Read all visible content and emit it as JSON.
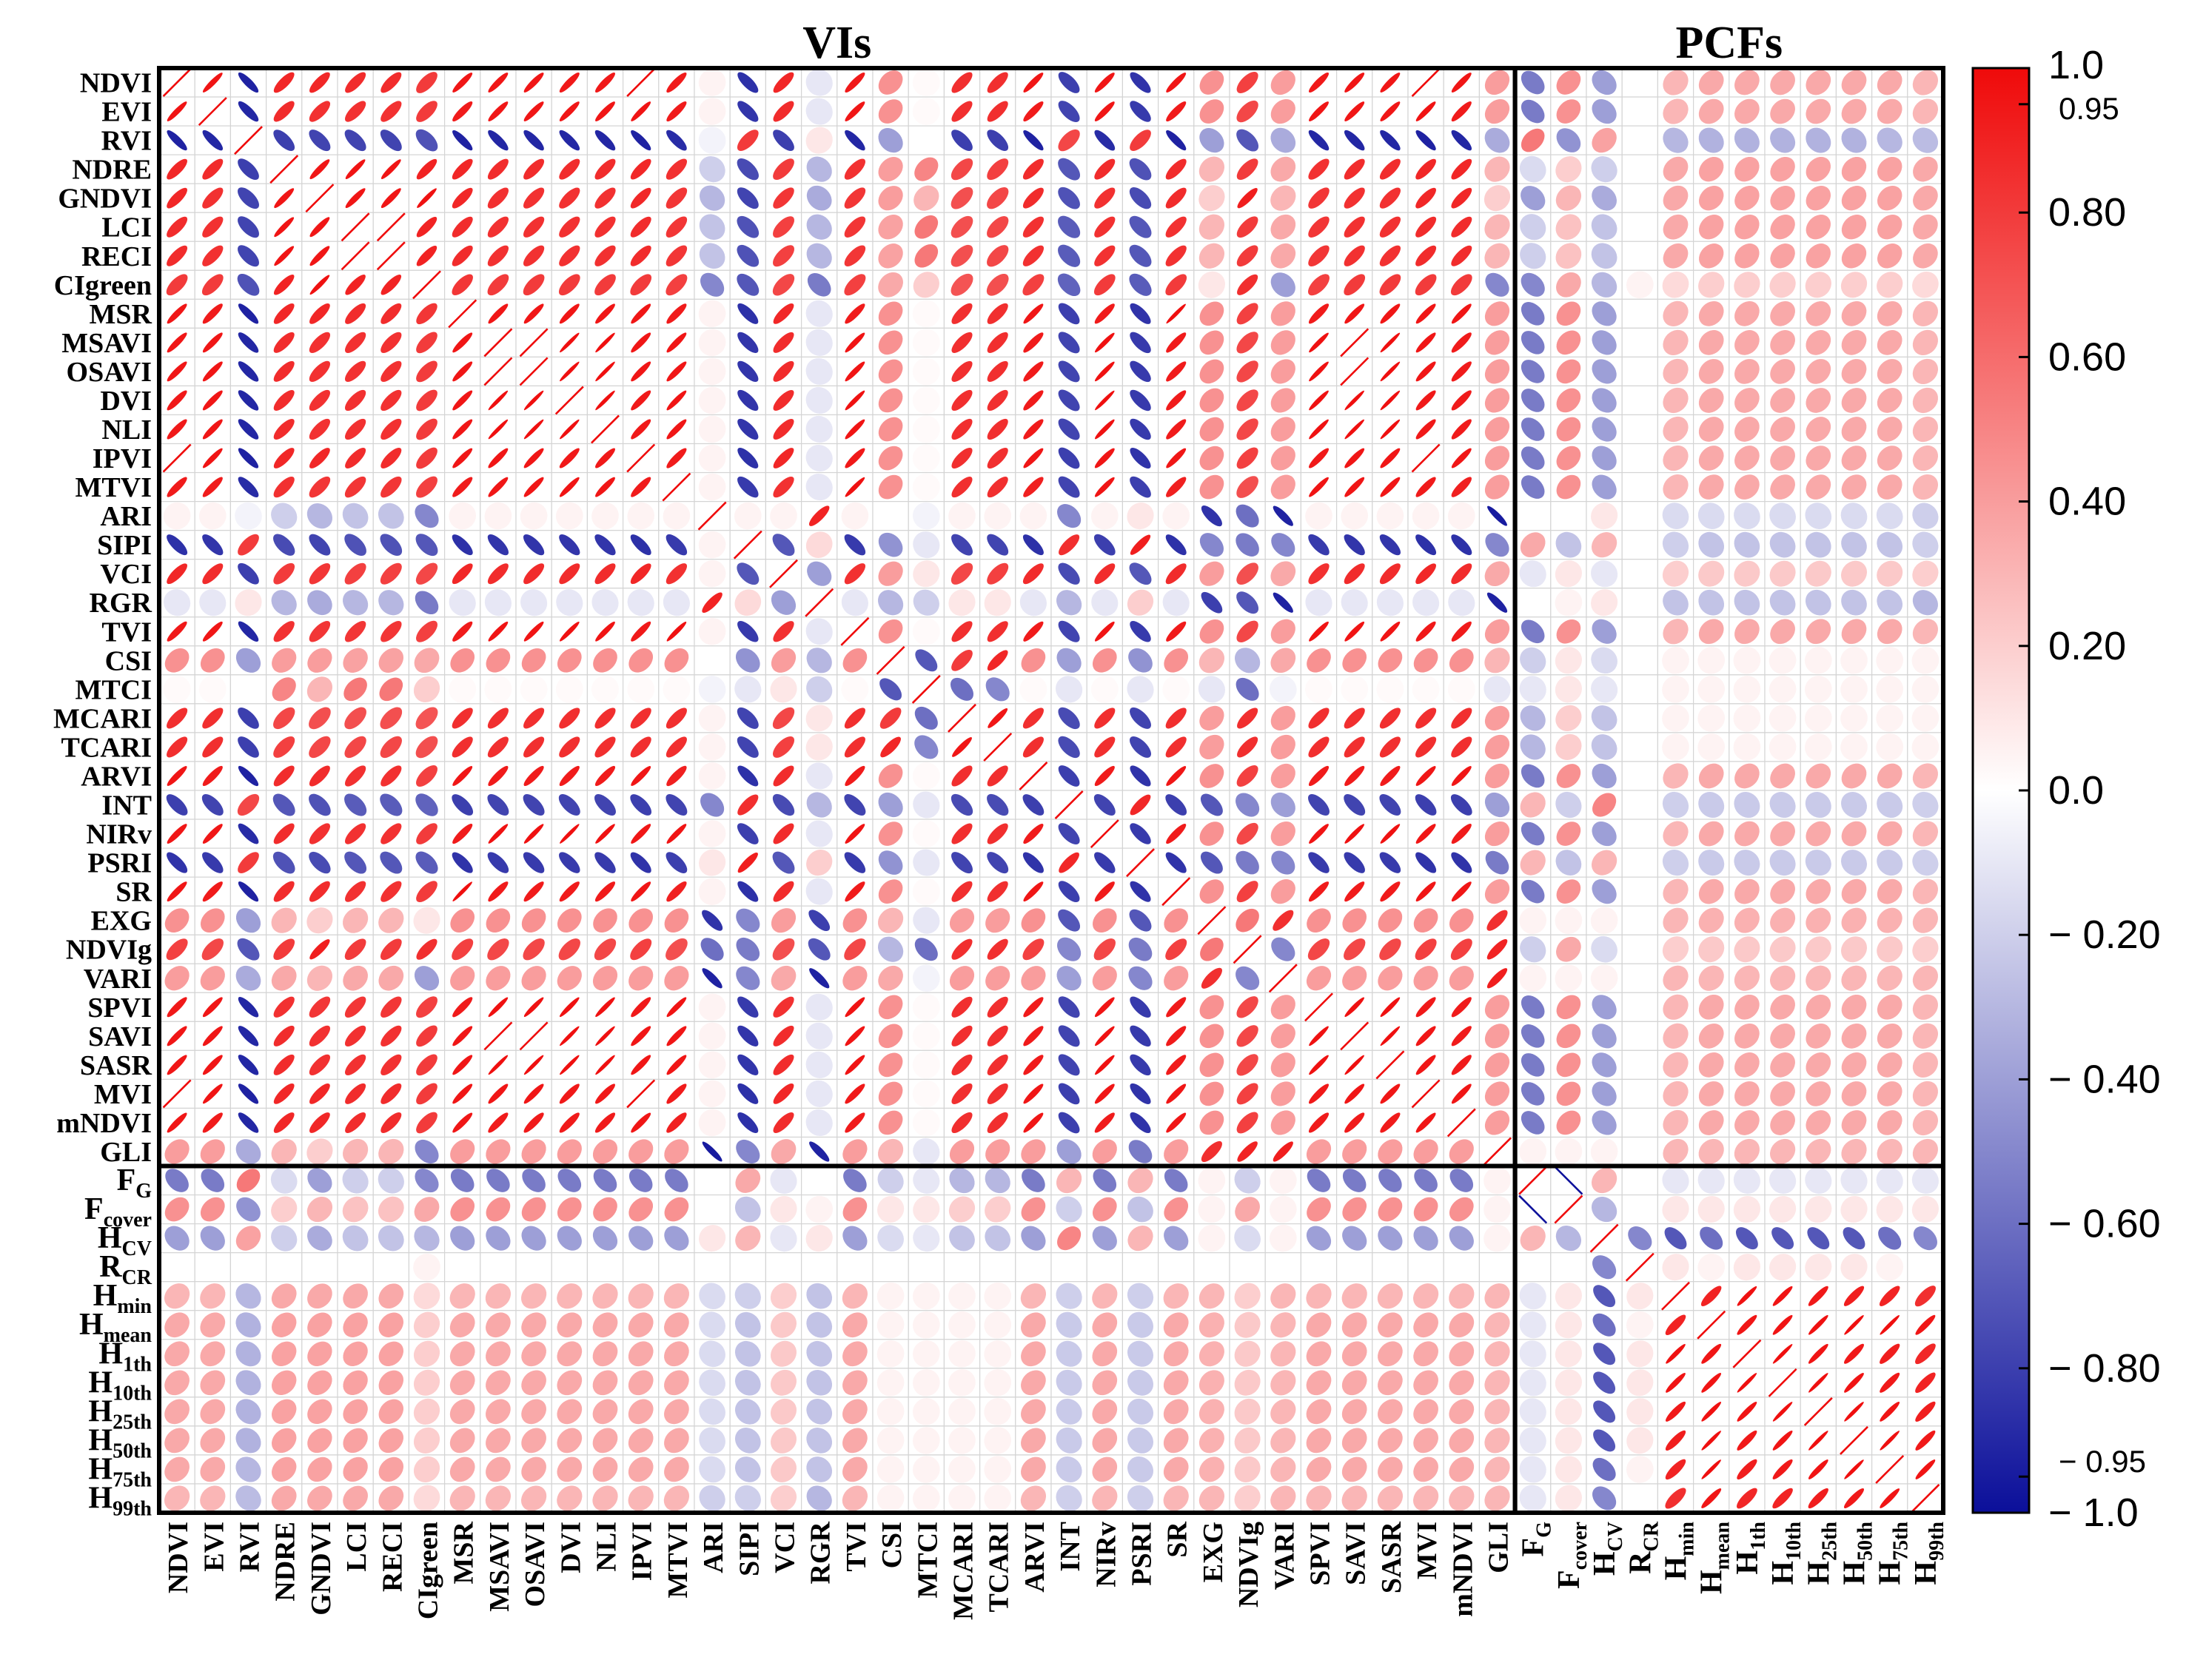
{
  "chart_data": {
    "type": "heatmap",
    "subtype": "correlation-ellipse-matrix",
    "group_labels": [
      "VIs",
      "PCFs"
    ],
    "row_labels": [
      {
        "text": "NDVI"
      },
      {
        "text": "EVI"
      },
      {
        "text": "RVI"
      },
      {
        "text": "NDRE"
      },
      {
        "text": "GNDVI"
      },
      {
        "text": "LCI"
      },
      {
        "text": "RECI"
      },
      {
        "text": "CIgreen"
      },
      {
        "text": "MSR"
      },
      {
        "text": "MSAVI"
      },
      {
        "text": "OSAVI"
      },
      {
        "text": "DVI"
      },
      {
        "text": "NLI"
      },
      {
        "text": "IPVI"
      },
      {
        "text": "MTVI"
      },
      {
        "text": "ARI"
      },
      {
        "text": "SIPI"
      },
      {
        "text": "VCI"
      },
      {
        "text": "RGR"
      },
      {
        "text": "TVI"
      },
      {
        "text": "CSI"
      },
      {
        "text": "MTCI"
      },
      {
        "text": "MCARI"
      },
      {
        "text": "TCARI"
      },
      {
        "text": "ARVI"
      },
      {
        "text": "INT"
      },
      {
        "text": "NIRv"
      },
      {
        "text": "PSRI"
      },
      {
        "text": "SR"
      },
      {
        "text": "EXG"
      },
      {
        "text": "NDVIg"
      },
      {
        "text": "VARI"
      },
      {
        "text": "SPVI"
      },
      {
        "text": "SAVI"
      },
      {
        "text": "SASR"
      },
      {
        "text": "MVI"
      },
      {
        "text": "mNDVI"
      },
      {
        "text": "GLI"
      },
      {
        "text": "F",
        "sub": "G"
      },
      {
        "text": "F",
        "sub": "cover"
      },
      {
        "text": "H",
        "sub": "CV"
      },
      {
        "text": "R",
        "sub": "CR"
      },
      {
        "text": "H",
        "sub": "min"
      },
      {
        "text": "H",
        "sub": "mean"
      },
      {
        "text": "H",
        "sub": "1th"
      },
      {
        "text": "H",
        "sub": "10th"
      },
      {
        "text": "H",
        "sub": "25th"
      },
      {
        "text": "H",
        "sub": "50th"
      },
      {
        "text": "H",
        "sub": "75th"
      },
      {
        "text": "H",
        "sub": "99th"
      }
    ],
    "colorbar": {
      "range": [
        -1.0,
        1.0
      ],
      "ticks": [
        "1.0",
        "0.95",
        "0.80",
        "0.60",
        "0.40",
        "0.20",
        "0.0",
        "− 0.20",
        "− 0.40",
        "− 0.60",
        "− 0.80",
        "− 0.95",
        "− 1.0"
      ],
      "tick_values": [
        1.0,
        0.95,
        0.8,
        0.6,
        0.4,
        0.2,
        0.0,
        -0.2,
        -0.4,
        -0.6,
        -0.8,
        -0.95,
        -1.0
      ],
      "colors": {
        "negative": "#0b0f9a",
        "mid": "#ffffff",
        "positive": "#ef0a0a"
      }
    },
    "matrix_rows": [
      "1.00 0.96 -0.92 0.88 0.88 0.86 0.86 0.80 0.95 0.95 0.95 0.94 0.94 1.00 0.93 0.05 -0.86 0.88 -0.10 0.94 0.45 0.02 0.85 0.85 0.95 -0.80 0.95 -0.85 0.95 0.45 0.78 0.40 0.94 0.95 0.95 1.00 0.95 0.40 -0.55 0.45 -0.40 0.00 0.30 0.35 0.35 0.35 0.35 0.35 0.35 0.30",
      "0.96 1.00 -0.90 0.86 0.84 0.84 0.84 0.80 0.93 0.95 0.95 0.95 0.95 0.96 0.93 0.05 -0.84 0.86 -0.10 0.95 0.45 0.02 0.85 0.85 0.93 -0.78 0.95 -0.82 0.93 0.45 0.75 0.40 0.95 0.95 0.95 0.96 0.93 0.40 -0.55 0.45 -0.40 0.00 0.30 0.35 0.35 0.35 0.35 0.35 0.35 0.30",
      "-0.92 -0.90 1.00 -0.80 -0.78 -0.78 -0.78 -0.72 -0.92 -0.90 -0.90 -0.90 -0.90 -0.92 -0.88 -0.05 0.80 -0.80 0.10 -0.90 -0.40 0.00 -0.80 -0.80 -0.92 0.75 -0.88 0.80 -0.92 -0.40 -0.70 -0.35 -0.90 -0.90 -0.90 -0.92 -0.90 -0.35 0.55 -0.45 0.38 0.00 -0.30 -0.32 -0.32 -0.32 -0.32 -0.32 -0.30 -0.28",
      "0.88 0.86 -0.80 1.00 0.95 0.96 0.96 0.90 0.88 0.86 0.86 0.86 0.86 0.88 0.84 -0.20 -0.75 0.80 -0.30 0.84 0.40 0.50 0.75 0.78 0.86 -0.70 0.86 -0.72 0.86 0.30 0.80 0.35 0.84 0.86 0.86 0.88 0.88 0.30 -0.15 0.20 -0.20 0.00 0.35 0.38 0.38 0.38 0.38 0.38 0.38 0.35",
      "0.88 0.84 -0.78 0.95 1.00 0.95 0.95 0.97 0.88 0.84 0.84 0.84 0.84 0.88 0.82 -0.30 -0.78 0.82 -0.35 0.82 0.40 0.30 0.72 0.75 0.86 -0.72 0.84 -0.75 0.86 0.20 0.92 0.30 0.82 0.84 0.84 0.88 0.88 0.20 -0.40 0.30 -0.35 0.00 0.35 0.38 0.38 0.38 0.38 0.38 0.38 0.35",
      "0.86 0.84 -0.78 0.96 0.95 1.00 0.99 0.90 0.86 0.84 0.84 0.84 0.84 0.86 0.82 -0.25 -0.72 0.78 -0.30 0.82 0.38 0.55 0.72 0.75 0.84 -0.68 0.84 -0.70 0.84 0.30 0.80 0.35 0.82 0.84 0.84 0.86 0.86 0.30 -0.20 0.25 -0.25 0.00 0.35 0.38 0.38 0.38 0.38 0.38 0.38 0.35",
      "0.86 0.84 -0.78 0.96 0.95 0.99 1.00 0.90 0.86 0.84 0.84 0.84 0.84 0.86 0.82 -0.25 -0.72 0.78 -0.30 0.82 0.38 0.55 0.72 0.75 0.84 -0.68 0.84 -0.70 0.84 0.30 0.80 0.35 0.82 0.84 0.84 0.86 0.86 0.30 -0.20 0.25 -0.25 0.00 0.35 0.38 0.38 0.38 0.38 0.38 0.38 0.35",
      "0.80 0.80 -0.72 0.90 0.97 0.90 0.90 1.00 0.82 0.80 0.80 0.80 0.80 0.80 0.78 -0.50 -0.70 0.75 -0.55 0.78 0.35 0.20 0.70 0.72 0.78 -0.65 0.80 -0.68 0.80 0.10 0.85 -0.40 0.78 0.80 0.80 0.80 0.80 -0.50 -0.50 0.35 -0.30 0.05 0.15 0.20 0.20 0.20 0.20 0.20 0.20 0.15",
      "0.95 0.93 -0.92 0.88 0.88 0.86 0.86 0.82 1.00 0.95 0.95 0.95 0.95 0.95 0.93 0.05 -0.86 0.88 -0.10 0.93 0.45 0.02 0.85 0.85 0.95 -0.80 0.93 -0.85 0.98 0.45 0.78 0.40 0.93 0.95 0.95 0.95 0.95 0.40 -0.55 0.45 -0.40 0.00 0.30 0.35 0.35 0.35 0.35 0.35 0.35 0.30",
      "0.95 0.95 -0.90 0.86 0.84 0.84 0.84 0.80 0.95 1.00 0.99 0.98 0.98 0.95 0.95 0.05 -0.84 0.86 -0.10 0.96 0.45 0.02 0.85 0.85 0.93 -0.78 0.97 -0.82 0.93 0.45 0.75 0.40 0.97 0.99 0.98 0.95 0.93 0.40 -0.55 0.45 -0.40 0.00 0.30 0.35 0.35 0.35 0.35 0.35 0.35 0.30",
      "0.95 0.95 -0.90 0.86 0.84 0.84 0.84 0.80 0.95 0.99 1.00 0.98 0.98 0.95 0.95 0.05 -0.84 0.86 -0.10 0.96 0.45 0.02 0.85 0.85 0.93 -0.78 0.97 -0.82 0.93 0.45 0.75 0.40 0.97 0.99 0.98 0.95 0.93 0.40 -0.55 0.45 -0.40 0.00 0.30 0.35 0.35 0.35 0.35 0.35 0.35 0.30",
      "0.94 0.95 -0.90 0.86 0.84 0.84 0.84 0.80 0.95 0.98 0.98 1.00 0.98 0.94 0.96 0.05 -0.84 0.86 -0.10 0.97 0.45 0.02 0.85 0.85 0.93 -0.78 0.98 -0.82 0.93 0.45 0.75 0.40 0.97 0.98 0.98 0.94 0.93 0.40 -0.55 0.45 -0.40 0.00 0.30 0.35 0.35 0.35 0.35 0.35 0.35 0.30",
      "0.94 0.95 -0.90 0.86 0.84 0.84 0.84 0.80 0.95 0.98 0.98 0.98 1.00 0.94 0.95 0.05 -0.84 0.86 -0.10 0.96 0.45 0.02 0.85 0.85 0.93 -0.78 0.97 -0.82 0.93 0.45 0.75 0.40 0.97 0.98 0.98 0.94 0.93 0.40 -0.55 0.45 -0.40 0.00 0.30 0.35 0.35 0.35 0.35 0.35 0.35 0.30",
      "1.00 0.96 -0.92 0.88 0.88 0.86 0.86 0.80 0.95 0.95 0.95 0.94 0.94 1.00 0.93 0.05 -0.86 0.88 -0.10 0.94 0.45 0.02 0.85 0.85 0.95 -0.80 0.95 -0.85 0.95 0.45 0.78 0.40 0.94 0.95 0.95 1.00 0.95 0.40 -0.55 0.45 -0.40 0.00 0.30 0.35 0.35 0.35 0.35 0.35 0.35 0.30",
      "0.93 0.93 -0.88 0.84 0.82 0.82 0.82 0.78 0.93 0.95 0.95 0.96 0.95 0.93 1.00 0.05 -0.82 0.84 -0.10 0.97 0.45 0.02 0.85 0.85 0.91 -0.78 0.96 -0.80 0.91 0.45 0.72 0.40 0.96 0.95 0.95 0.93 0.91 0.40 -0.55 0.45 -0.40 0.00 0.30 0.35 0.35 0.35 0.35 0.35 0.35 0.30",
      "0.05 0.05 -0.05 -0.20 -0.30 -0.25 -0.25 -0.50 0.05 0.05 0.05 0.05 0.05 0.05 0.05 1.00 0.05 0.05 0.90 0.05 0.00 -0.05 0.05 0.05 0.05 -0.50 0.05 0.10 0.05 -0.85 -0.60 -0.92 0.05 0.05 0.05 0.05 0.05 -0.95 0.00 0.00 0.10 0.00 -0.15 -0.15 -0.15 -0.15 -0.15 -0.15 -0.15 -0.20",
      "-0.86 -0.84 0.80 -0.75 -0.78 -0.72 -0.72 -0.70 -0.86 -0.84 -0.84 -0.84 -0.84 -0.86 -0.82 0.05 1.00 -0.70 0.15 -0.82 -0.45 -0.10 -0.78 -0.78 -0.86 0.85 -0.80 0.92 -0.86 -0.50 -0.55 -0.50 -0.82 -0.84 -0.84 -0.86 -0.86 -0.50 0.35 -0.25 0.30 0.00 -0.20 -0.25 -0.25 -0.25 -0.25 -0.25 -0.25 -0.20",
      "0.88 0.86 -0.80 0.80 0.82 0.78 0.78 0.75 0.88 0.86 0.86 0.86 0.86 0.88 0.84 0.05 -0.70 1.00 -0.40 0.84 0.40 0.10 0.75 0.78 0.86 -0.75 0.86 -0.70 0.86 0.40 0.72 0.35 0.84 0.86 0.86 0.88 0.86 0.35 -0.10 0.10 -0.10 0.00 0.20 0.22 0.22 0.22 0.22 0.22 0.22 0.20",
      "-0.10 -0.10 0.10 -0.30 -0.35 -0.30 -0.30 -0.55 -0.10 -0.10 -0.10 -0.10 -0.10 -0.10 -0.10 0.90 0.15 -0.40 1.00 -0.10 -0.30 -0.20 0.10 0.10 -0.10 -0.30 -0.10 0.20 -0.10 -0.80 -0.70 -0.92 -0.10 -0.10 -0.10 -0.10 -0.10 -0.92 0.00 0.05 0.10 0.00 -0.25 -0.25 -0.25 -0.25 -0.25 -0.25 -0.25 -0.30",
      "0.94 0.95 -0.90 0.84 0.82 0.82 0.82 0.78 0.93 0.96 0.96 0.97 0.96 0.94 0.97 0.05 -0.82 0.84 -0.10 1.00 0.45 0.02 0.85 0.85 0.93 -0.78 0.96 -0.82 0.93 0.45 0.75 0.40 0.96 0.96 0.96 0.94 0.93 0.40 -0.55 0.45 -0.40 0.00 0.30 0.35 0.35 0.35 0.35 0.35 0.35 0.30",
      "0.45 0.45 -0.40 0.40 0.40 0.38 0.38 0.35 0.45 0.45 0.45 0.45 0.45 0.45 0.45 0.00 -0.45 0.40 -0.30 0.45 1.00 -0.70 0.80 0.88 0.45 -0.40 0.45 -0.45 0.45 0.30 -0.30 0.35 0.45 0.45 0.45 0.45 0.45 0.30 -0.20 0.10 -0.15 0.00 0.05 0.05 0.05 0.05 0.05 0.05 0.05 0.05",
      "0.02 0.02 0.00 0.50 0.30 0.55 0.55 0.20 0.02 0.02 0.02 0.02 0.02 0.02 0.02 -0.05 -0.10 0.10 -0.20 0.02 -0.70 1.00 -0.60 -0.50 0.02 -0.10 0.02 -0.10 0.02 -0.10 -0.60 -0.05 0.02 0.02 0.02 0.02 0.02 -0.10 -0.10 0.10 -0.10 0.00 0.05 0.05 0.05 0.05 0.05 0.05 0.05 0.05",
      "0.85 0.85 -0.80 0.75 0.72 0.72 0.72 0.70 0.85 0.85 0.85 0.85 0.85 0.85 0.85 0.05 -0.78 0.75 0.10 0.85 0.80 -0.60 1.00 0.95 0.85 -0.75 0.85 -0.78 0.85 0.40 0.85 0.40 0.85 0.85 0.85 0.85 0.85 0.40 -0.30 0.20 -0.25 0.00 0.05 0.05 0.05 0.05 0.05 0.05 0.05 0.05",
      "0.85 0.85 -0.80 0.78 0.75 0.75 0.75 0.72 0.85 0.85 0.85 0.85 0.85 0.85 0.85 0.05 -0.78 0.78 0.10 0.85 0.88 -0.50 0.95 1.00 0.85 -0.75 0.85 -0.78 0.85 0.40 0.85 0.40 0.85 0.85 0.85 0.85 0.85 0.40 -0.30 0.20 -0.25 0.00 0.05 0.05 0.05 0.05 0.05 0.05 0.05 0.05",
      "0.95 0.93 -0.92 0.86 0.86 0.84 0.84 0.78 0.95 0.93 0.93 0.93 0.93 0.95 0.91 0.05 -0.86 0.86 -0.10 0.93 0.45 0.02 0.85 0.85 1.00 -0.80 0.93 -0.85 0.95 0.45 0.78 0.40 0.93 0.93 0.93 0.95 0.95 0.40 -0.55 0.45 -0.40 0.00 0.30 0.35 0.35 0.35 0.35 0.35 0.35 0.30",
      "-0.80 -0.78 0.75 -0.70 -0.72 -0.68 -0.68 -0.65 -0.80 -0.78 -0.78 -0.78 -0.78 -0.80 -0.78 -0.50 0.85 -0.75 -0.30 -0.78 -0.40 -0.10 -0.75 -0.75 -0.80 1.00 -0.78 0.88 -0.80 -0.70 -0.50 -0.40 -0.78 -0.78 -0.78 -0.80 -0.80 -0.40 0.30 -0.20 0.50 0.00 -0.20 -0.22 -0.22 -0.22 -0.22 -0.22 -0.22 -0.20",
      "0.95 0.95 -0.88 0.86 0.84 0.84 0.84 0.80 0.93 0.97 0.97 0.98 0.97 0.95 0.96 0.05 -0.80 0.86 -0.10 0.96 0.45 0.02 0.85 0.85 0.93 -0.78 1.00 -0.82 0.93 0.45 0.75 0.40 0.96 0.97 0.97 0.95 0.93 0.40 -0.55 0.45 -0.40 0.00 0.30 0.35 0.35 0.35 0.35 0.35 0.35 0.30",
      "-0.85 -0.82 0.80 -0.72 -0.75 -0.70 -0.70 -0.68 -0.85 -0.82 -0.82 -0.82 -0.82 -0.85 -0.80 0.10 0.92 -0.70 0.20 -0.82 -0.45 -0.10 -0.78 -0.78 -0.85 0.88 -0.82 1.00 -0.85 -0.70 -0.55 -0.50 -0.82 -0.82 -0.82 -0.85 -0.85 -0.55 0.30 -0.25 0.30 0.00 -0.20 -0.22 -0.22 -0.22 -0.22 -0.22 -0.22 -0.20",
      "0.95 0.93 -0.92 0.86 0.86 0.84 0.84 0.80 0.98 0.93 0.93 0.93 0.93 0.95 0.91 0.05 -0.86 0.86 -0.10 0.93 0.45 0.02 0.85 0.85 0.95 -0.80 0.93 -0.85 1.00 0.45 0.78 0.40 0.93 0.93 0.93 0.95 0.95 0.40 -0.55 0.45 -0.40 0.00 0.30 0.35 0.35 0.35 0.35 0.35 0.35 0.30",
      "0.45 0.45 -0.40 0.30 0.20 0.30 0.30 0.10 0.45 0.45 0.45 0.45 0.45 0.45 0.45 -0.85 -0.50 0.40 -0.80 0.45 0.30 -0.10 0.40 0.40 0.45 -0.70 0.45 -0.70 0.45 1.00 0.55 0.85 0.45 0.45 0.45 0.45 0.45 0.85 0.05 0.05 0.05 0.00 0.30 0.32 0.32 0.32 0.32 0.32 0.32 0.30",
      "0.78 0.75 -0.70 0.80 0.92 0.80 0.80 0.85 0.78 0.75 0.75 0.75 0.75 0.78 0.72 -0.60 -0.55 0.72 -0.70 0.75 -0.30 -0.60 0.85 0.85 0.78 -0.50 0.75 -0.55 0.78 0.55 1.00 -0.50 0.75 0.75 0.75 0.78 0.78 0.90 -0.20 0.35 -0.15 0.00 0.20 0.22 0.22 0.22 0.22 0.22 0.22 0.20",
      "0.40 0.40 -0.35 0.35 0.30 0.35 0.35 -0.40 0.40 0.40 0.40 0.40 0.40 0.40 0.40 -0.92 -0.50 0.35 -0.92 0.40 0.35 -0.05 0.40 0.40 0.40 -0.40 0.40 -0.50 0.40 0.85 -0.50 1.00 0.40 0.40 0.40 0.40 0.40 0.92 0.05 0.05 0.05 0.00 0.30 0.30 0.30 0.30 0.30 0.30 0.30 0.30",
      "0.94 0.95 -0.90 0.84 0.82 0.82 0.82 0.78 0.93 0.97 0.97 0.97 0.97 0.94 0.96 0.05 -0.82 0.84 -0.10 0.96 0.45 0.02 0.85 0.85 0.93 -0.78 0.96 -0.82 0.93 0.45 0.75 0.40 1.00 0.97 0.97 0.94 0.93 0.40 -0.55 0.45 -0.40 0.00 0.30 0.35 0.35 0.35 0.35 0.35 0.35 0.30",
      "0.95 0.95 -0.90 0.86 0.84 0.84 0.84 0.80 0.95 0.99 0.99 0.98 0.98 0.95 0.95 0.05 -0.84 0.86 -0.10 0.96 0.45 0.02 0.85 0.85 0.93 -0.78 0.97 -0.82 0.93 0.45 0.75 0.40 0.97 1.00 0.98 0.95 0.93 0.40 -0.55 0.45 -0.40 0.00 0.30 0.35 0.35 0.35 0.35 0.35 0.35 0.30",
      "0.95 0.95 -0.90 0.86 0.84 0.84 0.84 0.80 0.95 0.98 0.98 0.98 0.98 0.95 0.95 0.05 -0.84 0.86 -0.10 0.96 0.45 0.02 0.85 0.85 0.93 -0.78 0.97 -0.82 0.93 0.45 0.75 0.40 0.97 0.98 1.00 0.95 0.93 0.40 -0.55 0.45 -0.40 0.00 0.30 0.35 0.35 0.35 0.35 0.35 0.35 0.30",
      "1.00 0.96 -0.92 0.88 0.88 0.86 0.86 0.80 0.95 0.95 0.95 0.94 0.94 1.00 0.93 0.05 -0.86 0.88 -0.10 0.94 0.45 0.02 0.85 0.85 0.95 -0.80 0.95 -0.85 0.95 0.45 0.78 0.40 0.94 0.95 0.95 1.00 0.95 0.40 -0.55 0.45 -0.40 0.00 0.30 0.35 0.35 0.35 0.35 0.35 0.35 0.30",
      "0.95 0.93 -0.90 0.88 0.88 0.86 0.86 0.80 0.95 0.93 0.93 0.93 0.93 0.95 0.91 0.05 -0.86 0.86 -0.10 0.93 0.45 0.02 0.85 0.85 0.95 -0.80 0.93 -0.85 0.95 0.45 0.78 0.40 0.93 0.93 0.93 0.95 1.00 0.40 -0.55 0.45 -0.40 0.00 0.30 0.35 0.35 0.35 0.35 0.35 0.35 0.30",
      "0.40 0.40 -0.35 0.30 0.20 0.30 0.30 -0.50 0.40 0.40 0.40 0.40 0.40 0.40 0.40 -0.95 -0.50 0.35 -0.92 0.40 0.30 -0.10 0.40 0.40 0.40 -0.40 0.40 -0.55 0.40 0.85 0.90 0.92 0.40 0.40 0.40 0.40 0.40 1.00 0.05 0.05 0.05 0.00 0.30 0.30 0.30 0.30 0.30 0.30 0.30 0.30",
      "-0.55 -0.55 0.55 -0.15 -0.40 -0.20 -0.20 -0.50 -0.55 -0.55 -0.55 -0.55 -0.55 -0.55 -0.55 0.00 0.35 -0.10 0.00 -0.55 -0.20 -0.10 -0.30 -0.30 -0.55 0.30 -0.55 0.30 -0.55 0.05 -0.20 0.05 -0.55 -0.55 -0.55 -0.55 -0.55 0.05 1.00 -0.99 0.30 0.00 -0.10 -0.10 -0.10 -0.10 -0.10 -0.10 -0.10 -0.10",
      "0.45 0.45 -0.45 0.20 0.30 0.25 0.25 0.35 0.45 0.45 0.45 0.45 0.45 0.45 0.45 0.00 -0.25 0.10 0.05 0.45 0.10 0.10 0.20 0.20 0.45 -0.20 0.45 -0.25 0.45 0.05 0.35 0.05 0.45 0.45 0.45 0.45 0.45 0.05 -0.99 1.00 -0.30 0.00 0.10 0.10 0.10 0.10 0.10 0.10 0.10 0.10",
      "-0.40 -0.40 0.38 -0.20 -0.35 -0.25 -0.25 -0.30 -0.40 -0.40 -0.40 -0.40 -0.40 -0.40 -0.40 0.10 0.30 -0.10 0.10 -0.40 -0.15 -0.10 -0.25 -0.25 -0.40 0.50 -0.40 0.30 -0.40 0.05 -0.15 0.05 -0.40 -0.40 -0.40 -0.40 -0.40 0.05 0.30 -0.30 1.00 -0.50 -0.70 -0.60 -0.70 -0.70 -0.70 -0.70 -0.60 -0.50",
      "0.00 0.00 0.00 0.00 0.00 0.00 0.00 0.05 0.00 0.00 0.00 0.00 0.00 0.00 0.00 0.00 0.00 0.00 0.00 0.00 0.00 0.00 0.00 0.00 0.00 0.00 0.00 0.00 0.00 0.00 0.00 0.00 0.00 0.00 0.00 0.00 0.00 0.00 0.00 0.00 -0.50 1.00 0.10 0.05 0.10 0.10 0.10 0.10 0.05 0.00",
      "0.30 0.30 -0.30 0.35 0.35 0.35 0.35 0.15 0.30 0.30 0.30 0.30 0.30 0.30 0.30 -0.15 -0.20 0.20 -0.25 0.30 0.05 0.05 0.05 0.05 0.30 -0.20 0.30 -0.20 0.30 0.30 0.20 0.30 0.30 0.30 0.30 0.30 0.30 0.30 -0.10 0.10 -0.70 0.10 1.00 0.90 0.97 0.96 0.94 0.92 0.90 0.85",
      "0.35 0.35 -0.32 0.38 0.38 0.38 0.38 0.20 0.35 0.35 0.35 0.35 0.35 0.35 0.35 -0.15 -0.25 0.22 -0.25 0.35 0.05 0.05 0.05 0.05 0.35 -0.22 0.35 -0.22 0.35 0.32 0.22 0.30 0.35 0.35 0.35 0.35 0.35 0.30 -0.10 0.10 -0.60 0.05 0.90 1.00 0.95 0.96 0.97 0.98 0.98 0.95",
      "0.35 0.35 -0.32 0.38 0.38 0.38 0.38 0.20 0.35 0.35 0.35 0.35 0.35 0.35 0.35 -0.15 -0.25 0.22 -0.25 0.35 0.05 0.05 0.05 0.05 0.35 -0.22 0.35 -0.22 0.35 0.32 0.22 0.30 0.35 0.35 0.35 0.35 0.35 0.30 -0.10 0.10 -0.70 0.10 0.97 0.95 1.00 0.98 0.96 0.94 0.92 0.88",
      "0.35 0.35 -0.32 0.38 0.38 0.38 0.38 0.20 0.35 0.35 0.35 0.35 0.35 0.35 0.35 -0.15 -0.25 0.22 -0.25 0.35 0.05 0.05 0.05 0.05 0.35 -0.22 0.35 -0.22 0.35 0.32 0.22 0.30 0.35 0.35 0.35 0.35 0.35 0.30 -0.10 0.10 -0.70 0.10 0.96 0.96 0.98 1.00 0.98 0.96 0.94 0.90",
      "0.35 0.35 -0.32 0.38 0.38 0.38 0.38 0.20 0.35 0.35 0.35 0.35 0.35 0.35 0.35 -0.15 -0.25 0.22 -0.25 0.35 0.05 0.05 0.05 0.05 0.35 -0.22 0.35 -0.22 0.35 0.32 0.22 0.30 0.35 0.35 0.35 0.35 0.35 0.30 -0.10 0.10 -0.70 0.10 0.94 0.97 0.96 0.98 1.00 0.98 0.96 0.92",
      "0.35 0.35 -0.32 0.38 0.38 0.38 0.38 0.20 0.35 0.35 0.35 0.35 0.35 0.35 0.35 -0.15 -0.25 0.22 -0.25 0.35 0.05 0.05 0.05 0.05 0.35 -0.22 0.35 -0.22 0.35 0.32 0.22 0.30 0.35 0.35 0.35 0.35 0.35 0.30 -0.10 0.10 -0.70 0.10 0.92 0.98 0.94 0.96 0.98 1.00 0.98 0.94",
      "0.35 0.35 -0.30 0.38 0.38 0.38 0.38 0.20 0.35 0.35 0.35 0.35 0.35 0.35 0.35 -0.15 -0.25 0.22 -0.25 0.35 0.05 0.05 0.05 0.05 0.35 -0.22 0.35 -0.22 0.35 0.32 0.22 0.30 0.35 0.35 0.35 0.35 0.35 0.30 -0.10 0.10 -0.60 0.05 0.90 0.98 0.92 0.94 0.96 0.98 1.00 0.96",
      "0.30 0.30 -0.28 0.35 0.35 0.35 0.35 0.15 0.30 0.30 0.30 0.30 0.30 0.30 0.30 -0.20 -0.20 0.20 -0.30 0.30 0.05 0.05 0.05 0.05 0.30 -0.20 0.30 -0.20 0.30 0.30 0.20 0.30 0.30 0.30 0.30 0.30 0.30 0.30 -0.10 0.10 -0.50 0.00 0.85 0.95 0.88 0.90 0.92 0.94 0.96 1.00"
    ]
  }
}
